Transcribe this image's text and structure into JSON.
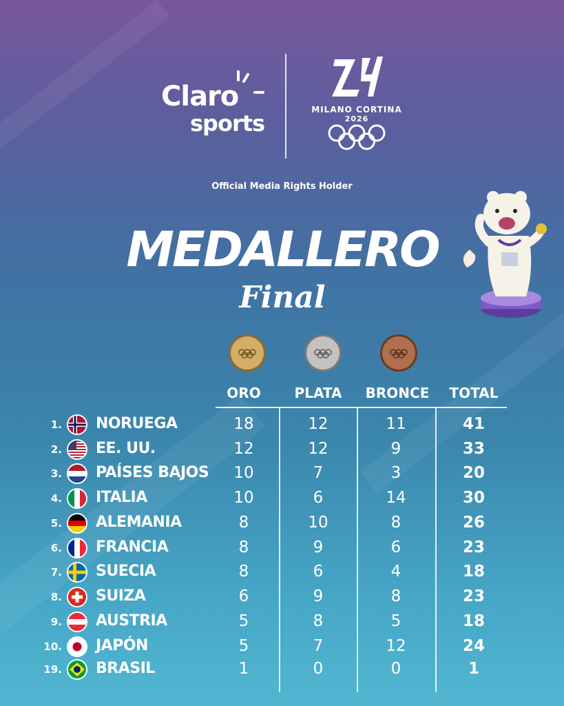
{
  "header": {
    "brand_line1": "Claro",
    "brand_line2": "sports",
    "games_name": "MILANO CORTINA",
    "games_year": "2026",
    "rights_text": "Official Media Rights Holder"
  },
  "title": "MEDALLERO",
  "subtitle": "Final",
  "columns": {
    "gold": "ORO",
    "silver": "PLATA",
    "bronze": "BRONCE",
    "total": "TOTAL"
  },
  "colors": {
    "gold": "#c9a45a",
    "silver": "#b9b6b6",
    "bronze": "#a86a4b",
    "background_top": "#7a569c",
    "background_bottom": "#52b6d1"
  },
  "rows": [
    {
      "rank": "1.",
      "flag": "norway-flag-icon",
      "country": "NORUEGA",
      "gold": "18",
      "silver": "12",
      "bronze": "11",
      "total": "41"
    },
    {
      "rank": "2.",
      "flag": "usa-flag-icon",
      "country": "EE. UU.",
      "gold": "12",
      "silver": "12",
      "bronze": "9",
      "total": "33"
    },
    {
      "rank": "3.",
      "flag": "netherlands-flag-icon",
      "country": "PAÍSES BAJOS",
      "gold": "10",
      "silver": "7",
      "bronze": "3",
      "total": "20"
    },
    {
      "rank": "4.",
      "flag": "italy-flag-icon",
      "country": "ITALIA",
      "gold": "10",
      "silver": "6",
      "bronze": "14",
      "total": "30"
    },
    {
      "rank": "5.",
      "flag": "germany-flag-icon",
      "country": "ALEMANIA",
      "gold": "8",
      "silver": "10",
      "bronze": "8",
      "total": "26"
    },
    {
      "rank": "6.",
      "flag": "france-flag-icon",
      "country": "FRANCIA",
      "gold": "8",
      "silver": "9",
      "bronze": "6",
      "total": "23"
    },
    {
      "rank": "7.",
      "flag": "sweden-flag-icon",
      "country": "SUECIA",
      "gold": "8",
      "silver": "6",
      "bronze": "4",
      "total": "18"
    },
    {
      "rank": "8.",
      "flag": "switzerland-flag-icon",
      "country": "SUIZA",
      "gold": "6",
      "silver": "9",
      "bronze": "8",
      "total": "23"
    },
    {
      "rank": "9.",
      "flag": "austria-flag-icon",
      "country": "AUSTRIA",
      "gold": "5",
      "silver": "8",
      "bronze": "5",
      "total": "18"
    },
    {
      "rank": "10.",
      "flag": "japan-flag-icon",
      "country": "JAPÓN",
      "gold": "5",
      "silver": "7",
      "bronze": "12",
      "total": "24"
    },
    {
      "rank": "19.",
      "flag": "brazil-flag-icon",
      "country": "BRASIL",
      "gold": "1",
      "silver": "0",
      "bronze": "0",
      "total": "1"
    }
  ]
}
